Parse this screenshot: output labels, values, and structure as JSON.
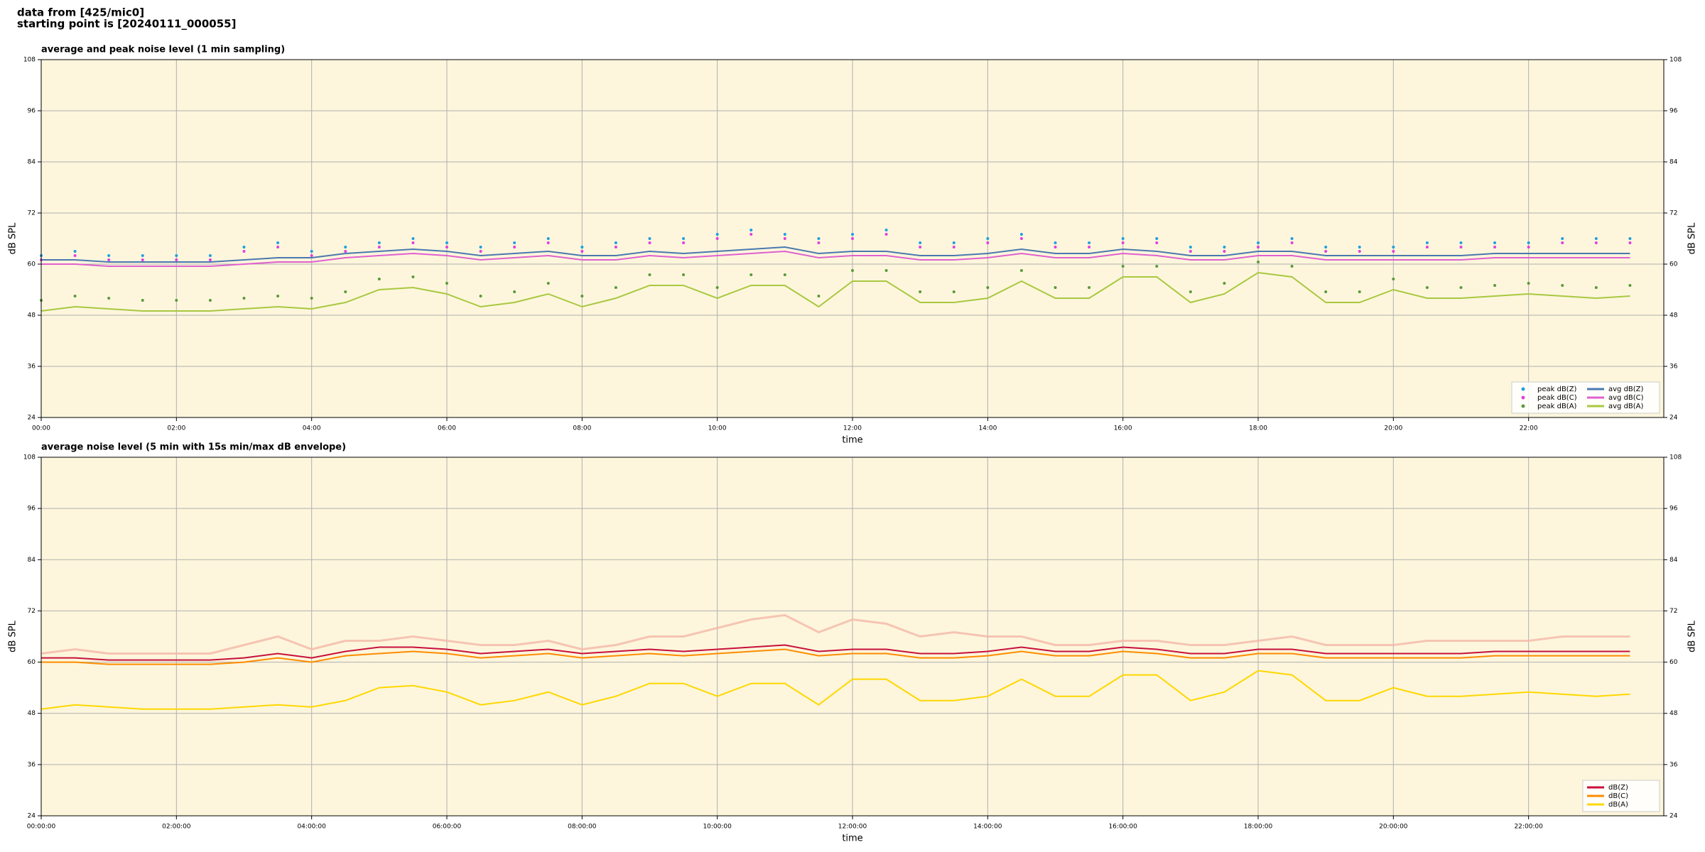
{
  "header": {
    "line1": "data from [425/mic0]",
    "line2": "starting point is [20240111_000055]"
  },
  "chart_data": [
    {
      "type": "line",
      "title": "average and peak noise level (1 min sampling)",
      "xlabel": "time",
      "ylabel": "dB SPL",
      "grid": true,
      "legend": "lower right",
      "legend_columns": 2,
      "background": "#fdf6dc",
      "xlim": [
        0,
        24
      ],
      "ylim": [
        24,
        108
      ],
      "yticks": [
        24,
        36,
        48,
        60,
        72,
        84,
        96,
        108
      ],
      "xticks": [
        {
          "value": 0,
          "label": "00:00"
        },
        {
          "value": 2,
          "label": "02:00"
        },
        {
          "value": 4,
          "label": "04:00"
        },
        {
          "value": 6,
          "label": "06:00"
        },
        {
          "value": 8,
          "label": "08:00"
        },
        {
          "value": 10,
          "label": "10:00"
        },
        {
          "value": 12,
          "label": "12:00"
        },
        {
          "value": 14,
          "label": "14:00"
        },
        {
          "value": 16,
          "label": "16:00"
        },
        {
          "value": 18,
          "label": "18:00"
        },
        {
          "value": 20,
          "label": "20:00"
        },
        {
          "value": 22,
          "label": "22:00"
        }
      ],
      "x": [
        0,
        0.5,
        1,
        1.5,
        2,
        2.5,
        3,
        3.5,
        4,
        4.5,
        5,
        5.5,
        6,
        6.5,
        7,
        7.5,
        8,
        8.5,
        9,
        9.5,
        10,
        10.5,
        11,
        11.5,
        12,
        12.5,
        13,
        13.5,
        14,
        14.5,
        15,
        15.5,
        16,
        16.5,
        17,
        17.5,
        18,
        18.5,
        19,
        19.5,
        20,
        20.5,
        21,
        21.5,
        22,
        22.5,
        23,
        23.5
      ],
      "series": [
        {
          "name": "peak dB(Z)",
          "mark": "dot",
          "color": "#1f9fe0",
          "values": [
            62,
            63,
            62,
            62,
            62,
            62,
            64,
            65,
            63,
            64,
            65,
            66,
            65,
            64,
            65,
            66,
            64,
            65,
            66,
            66,
            67,
            68,
            67,
            66,
            67,
            68,
            65,
            65,
            66,
            67,
            65,
            65,
            66,
            66,
            64,
            64,
            65,
            66,
            64,
            64,
            64,
            65,
            65,
            65,
            65,
            66,
            66,
            66
          ]
        },
        {
          "name": "peak dB(C)",
          "mark": "dot",
          "color": "#e040e0",
          "values": [
            61,
            62,
            61,
            61,
            61,
            61,
            63,
            64,
            62,
            63,
            64,
            65,
            64,
            63,
            64,
            65,
            63,
            64,
            65,
            65,
            66,
            67,
            66,
            65,
            66,
            67,
            64,
            64,
            65,
            66,
            64,
            64,
            65,
            65,
            63,
            63,
            64,
            65,
            63,
            63,
            63,
            64,
            64,
            64,
            64,
            65,
            65,
            65
          ]
        },
        {
          "name": "peak dB(A)",
          "mark": "dot",
          "color": "#5a9a3a",
          "values": [
            51.5,
            52.5,
            52,
            51.5,
            51.5,
            51.5,
            52,
            52.5,
            52,
            53.5,
            56.5,
            57,
            55.5,
            52.5,
            53.5,
            55.5,
            52.5,
            54.5,
            57.5,
            57.5,
            54.5,
            57.5,
            57.5,
            52.5,
            58.5,
            58.5,
            53.5,
            53.5,
            54.5,
            58.5,
            54.5,
            54.5,
            59.5,
            59.5,
            53.5,
            55.5,
            60.5,
            59.5,
            53.5,
            53.5,
            56.5,
            54.5,
            54.5,
            55,
            55.5,
            55,
            54.5,
            55
          ]
        },
        {
          "name": "avg dB(Z)",
          "mark": "line",
          "color": "#4a78b0",
          "values": [
            61,
            61,
            60.5,
            60.5,
            60.5,
            60.5,
            61,
            61.5,
            61.5,
            62.5,
            63,
            63.5,
            63,
            62,
            62.5,
            63,
            62,
            62,
            63,
            62.5,
            63,
            63.5,
            64,
            62.5,
            63,
            63,
            62,
            62,
            62.5,
            63.5,
            62.5,
            62.5,
            63.5,
            63,
            62,
            62,
            63,
            63,
            62,
            62,
            62,
            62,
            62,
            62.5,
            62.5,
            62.5,
            62.5,
            62.5
          ]
        },
        {
          "name": "avg dB(C)",
          "mark": "line",
          "color": "#e060d0",
          "values": [
            60,
            60,
            59.5,
            59.5,
            59.5,
            59.5,
            60,
            60.5,
            60.5,
            61.5,
            62,
            62.5,
            62,
            61,
            61.5,
            62,
            61,
            61,
            62,
            61.5,
            62,
            62.5,
            63,
            61.5,
            62,
            62,
            61,
            61,
            61.5,
            62.5,
            61.5,
            61.5,
            62.5,
            62,
            61,
            61,
            62,
            62,
            61,
            61,
            61,
            61,
            61,
            61.5,
            61.5,
            61.5,
            61.5,
            61.5
          ]
        },
        {
          "name": "avg dB(A)",
          "mark": "line",
          "color": "#a8c840",
          "values": [
            49,
            50,
            49.5,
            49,
            49,
            49,
            49.5,
            50,
            49.5,
            51,
            54,
            54.5,
            53,
            50,
            51,
            53,
            50,
            52,
            55,
            55,
            52,
            55,
            55,
            50,
            56,
            56,
            51,
            51,
            52,
            56,
            52,
            52,
            57,
            57,
            51,
            53,
            58,
            57,
            51,
            51,
            54,
            52,
            52,
            52.5,
            53,
            52.5,
            52,
            52.5
          ]
        }
      ]
    },
    {
      "type": "line",
      "title": "average noise level (5 min with 15s min/max dB envelope)",
      "xlabel": "time",
      "ylabel": "dB SPL",
      "grid": true,
      "legend": "lower right",
      "legend_columns": 1,
      "background": "#fdf6dc",
      "xlim": [
        0,
        24
      ],
      "ylim": [
        24,
        108
      ],
      "yticks": [
        24,
        36,
        48,
        60,
        72,
        84,
        96,
        108
      ],
      "xticks": [
        {
          "value": 0,
          "label": "00:00:00"
        },
        {
          "value": 2,
          "label": "02:00:00"
        },
        {
          "value": 4,
          "label": "04:00:00"
        },
        {
          "value": 6,
          "label": "06:00:00"
        },
        {
          "value": 8,
          "label": "08:00:00"
        },
        {
          "value": 10,
          "label": "10:00:00"
        },
        {
          "value": 12,
          "label": "12:00:00"
        },
        {
          "value": 14,
          "label": "14:00:00"
        },
        {
          "value": 16,
          "label": "16:00:00"
        },
        {
          "value": 18,
          "label": "18:00:00"
        },
        {
          "value": 20,
          "label": "20:00:00"
        },
        {
          "value": 22,
          "label": "22:00:00"
        }
      ],
      "x": [
        0,
        0.5,
        1,
        1.5,
        2,
        2.5,
        3,
        3.5,
        4,
        4.5,
        5,
        5.5,
        6,
        6.5,
        7,
        7.5,
        8,
        8.5,
        9,
        9.5,
        10,
        10.5,
        11,
        11.5,
        12,
        12.5,
        13,
        13.5,
        14,
        14.5,
        15,
        15.5,
        16,
        16.5,
        17,
        17.5,
        18,
        18.5,
        19,
        19.5,
        20,
        20.5,
        21,
        21.5,
        22,
        22.5,
        23,
        23.5
      ],
      "envelope": {
        "color": "#f4b8a8",
        "values": [
          62,
          63,
          62,
          62,
          62,
          62,
          64,
          66,
          63,
          65,
          65,
          66,
          65,
          64,
          64,
          65,
          63,
          64,
          66,
          66,
          68,
          70,
          71,
          67,
          70,
          69,
          66,
          67,
          66,
          66,
          64,
          64,
          65,
          65,
          64,
          64,
          65,
          66,
          64,
          64,
          64,
          65,
          65,
          65,
          65,
          66,
          66,
          66
        ]
      },
      "series": [
        {
          "name": "dB(Z)",
          "mark": "line",
          "color": "#c8103c",
          "values": [
            61,
            61,
            60.5,
            60.5,
            60.5,
            60.5,
            61,
            62,
            61,
            62.5,
            63.5,
            63.5,
            63,
            62,
            62.5,
            63,
            62,
            62.5,
            63,
            62.5,
            63,
            63.5,
            64,
            62.5,
            63,
            63,
            62,
            62,
            62.5,
            63.5,
            62.5,
            62.5,
            63.5,
            63,
            62,
            62,
            63,
            63,
            62,
            62,
            62,
            62,
            62,
            62.5,
            62.5,
            62.5,
            62.5,
            62.5
          ]
        },
        {
          "name": "dB(C)",
          "mark": "line",
          "color": "#ff8c00",
          "values": [
            60,
            60,
            59.5,
            59.5,
            59.5,
            59.5,
            60,
            61,
            60,
            61.5,
            62,
            62.5,
            62,
            61,
            61.5,
            62,
            61,
            61.5,
            62,
            61.5,
            62,
            62.5,
            63,
            61.5,
            62,
            62,
            61,
            61,
            61.5,
            62.5,
            61.5,
            61.5,
            62.5,
            62,
            61,
            61,
            62,
            62,
            61,
            61,
            61,
            61,
            61,
            61.5,
            61.5,
            61.5,
            61.5,
            61.5
          ]
        },
        {
          "name": "dB(A)",
          "mark": "line",
          "color": "#ffd700",
          "values": [
            49,
            50,
            49.5,
            49,
            49,
            49,
            49.5,
            50,
            49.5,
            51,
            54,
            54.5,
            53,
            50,
            51,
            53,
            50,
            52,
            55,
            55,
            52,
            55,
            55,
            50,
            56,
            56,
            51,
            51,
            52,
            56,
            52,
            52,
            57,
            57,
            51,
            53,
            58,
            57,
            51,
            51,
            54,
            52,
            52,
            52.5,
            53,
            52.5,
            52,
            52.5
          ]
        }
      ]
    }
  ]
}
